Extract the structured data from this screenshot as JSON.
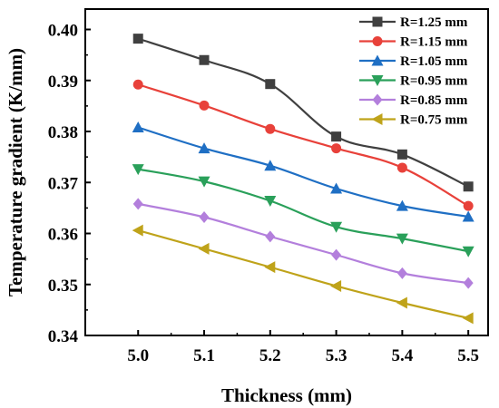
{
  "chart_data": {
    "type": "line",
    "xlabel": "Thickness (mm)",
    "ylabel": "Temperature gradient (K/mm)",
    "x": [
      5.0,
      5.1,
      5.2,
      5.3,
      5.4,
      5.5
    ],
    "x_tick_labels": [
      "5.0",
      "5.1",
      "5.2",
      "5.3",
      "5.4",
      "5.5"
    ],
    "y_ticks": [
      0.34,
      0.35,
      0.36,
      0.37,
      0.38,
      0.39,
      0.4
    ],
    "y_tick_labels": [
      "0.34",
      "0.35",
      "0.36",
      "0.37",
      "0.38",
      "0.39",
      "0.40"
    ],
    "xlim": [
      4.92,
      5.53
    ],
    "ylim": [
      0.34,
      0.404
    ],
    "grid": false,
    "legend_position": "top-right",
    "series": [
      {
        "name": "R=1.25 mm",
        "color": "#404040",
        "marker": "square",
        "values": [
          0.3982,
          0.394,
          0.3893,
          0.379,
          0.3755,
          0.3692
        ]
      },
      {
        "name": "R=1.15 mm",
        "color": "#e8413a",
        "marker": "circle",
        "values": [
          0.3892,
          0.3851,
          0.3805,
          0.3767,
          0.3729,
          0.3654
        ]
      },
      {
        "name": "R=1.05 mm",
        "color": "#1f6fc4",
        "marker": "triangle-up",
        "values": [
          0.3808,
          0.3767,
          0.3733,
          0.3688,
          0.3654,
          0.3633
        ]
      },
      {
        "name": "R=0.95 mm",
        "color": "#2aa05a",
        "marker": "triangle-down",
        "values": [
          0.3726,
          0.3702,
          0.3664,
          0.3613,
          0.359,
          0.3565
        ]
      },
      {
        "name": "R=0.85 mm",
        "color": "#b37fdc",
        "marker": "diamond",
        "values": [
          0.3658,
          0.3632,
          0.3594,
          0.3558,
          0.3522,
          0.3503
        ]
      },
      {
        "name": "R=0.75 mm",
        "color": "#bfa31a",
        "marker": "triangle-left",
        "values": [
          0.3606,
          0.357,
          0.3534,
          0.3497,
          0.3464,
          0.3434
        ]
      }
    ]
  }
}
